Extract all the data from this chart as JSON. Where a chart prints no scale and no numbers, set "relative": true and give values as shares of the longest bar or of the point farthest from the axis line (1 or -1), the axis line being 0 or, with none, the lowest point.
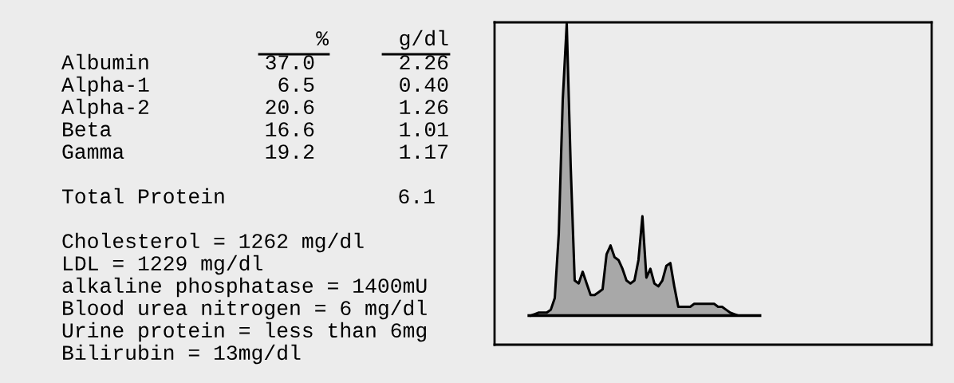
{
  "chart_data": [
    {
      "type": "other",
      "annotations": [
        "%",
        "g/dl",
        "Albumin",
        "37.0",
        "2.26",
        "Alpha-1",
        "6.5",
        "0.40",
        "Alpha-2",
        "20.6",
        "1.26",
        "Beta",
        "16.6",
        "1.01",
        "Gamma",
        "19.2",
        "1.17",
        "Total Protein",
        "6.1",
        "Cholesterol = 1262 mg/dl",
        "LDL = 1229 mg/dl",
        "alkaline phosphatase = 1400mU",
        "Blood urea nitrogen = 6 mg/dl",
        "Urine protein = less than 6mg",
        "Bilirubin = 13mg/dl"
      ]
    },
    {
      "type": "area",
      "relative": true,
      "tick_labels": false,
      "categories": [
        null,
        null,
        null,
        null,
        null,
        null,
        null,
        null,
        null,
        null,
        null,
        null,
        null,
        null,
        null,
        null,
        null,
        null,
        null,
        null,
        null,
        null,
        null,
        null,
        null,
        null,
        null,
        null,
        null,
        null,
        null,
        null,
        null,
        null,
        null,
        null,
        null,
        null,
        null,
        null,
        null,
        null,
        null,
        null,
        null,
        null,
        null,
        null,
        null,
        null,
        null,
        null,
        null,
        null,
        null,
        null,
        null
      ],
      "series": [
        {
          "color": "#a8a8a8",
          "values": [
            0,
            0.005,
            0.01,
            0.01,
            0.01,
            0.02,
            0.06,
            0.28,
            0.74,
            1.0,
            0.51,
            0.12,
            0.11,
            0.15,
            0.11,
            0.07,
            0.07,
            0.08,
            0.09,
            0.21,
            0.24,
            0.2,
            0.19,
            0.16,
            0.12,
            0.11,
            0.12,
            0.19,
            0.34,
            0.13,
            0.16,
            0.11,
            0.1,
            0.12,
            0.17,
            0.18,
            0.1,
            0.03,
            0.03,
            0.03,
            0.03,
            0.04,
            0.04,
            0.04,
            0.04,
            0.04,
            0.04,
            0.03,
            0.03,
            0.02,
            0.01,
            0.005,
            0,
            0,
            0,
            0,
            0
          ]
        }
      ]
    }
  ]
}
